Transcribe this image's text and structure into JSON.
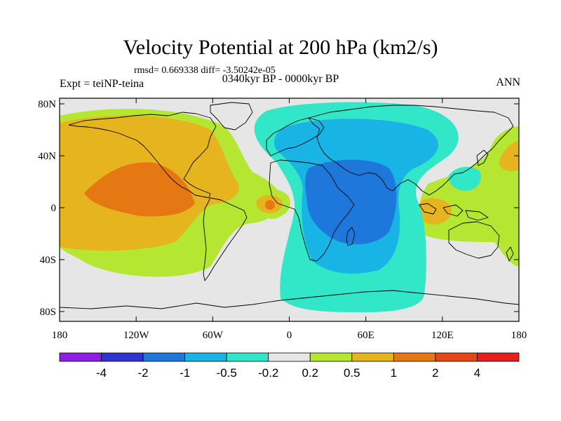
{
  "title": "Velocity Potential at 200 hPa (km2/s)",
  "stats": "rmsd= 0.669338 diff= -3.50242e-05",
  "subtitle": "0340kyr BP - 0000kyr BP",
  "left_label": "Expt = teiNP-teina",
  "right_label": "ANN",
  "lat_ticks": [
    {
      "label": "80N",
      "lat": 80
    },
    {
      "label": "40N",
      "lat": 40
    },
    {
      "label": "0",
      "lat": 0
    },
    {
      "label": "40S",
      "lat": -40
    },
    {
      "label": "80S",
      "lat": -80
    }
  ],
  "lon_ticks": [
    {
      "label": "180",
      "lon": -180
    },
    {
      "label": "120W",
      "lon": -120
    },
    {
      "label": "60W",
      "lon": -60
    },
    {
      "label": "0",
      "lon": 0
    },
    {
      "label": "60E",
      "lon": 60
    },
    {
      "label": "120E",
      "lon": 120
    },
    {
      "label": "180",
      "lon": 180
    }
  ],
  "colorbar": {
    "colors": [
      "#8c1ee6",
      "#3232d2",
      "#1e78dc",
      "#18b4e6",
      "#32e6c8",
      "#e6e6e6",
      "#b4e632",
      "#e6b41e",
      "#e67814",
      "#e64614",
      "#e61e1e"
    ],
    "labels": [
      "-4",
      "-2",
      "-1",
      "-0.5",
      "-0.2",
      "0.2",
      "0.5",
      "1",
      "2",
      "4"
    ]
  },
  "palette": {
    "background": "#e6e6e6",
    "neg_strong": "#1e78dc",
    "neg_medium": "#18b4e6",
    "neg_weak": "#32e6c8",
    "pos_weak": "#b4e632",
    "pos_medium": "#e6b41e",
    "pos_strong": "#e67814"
  }
}
